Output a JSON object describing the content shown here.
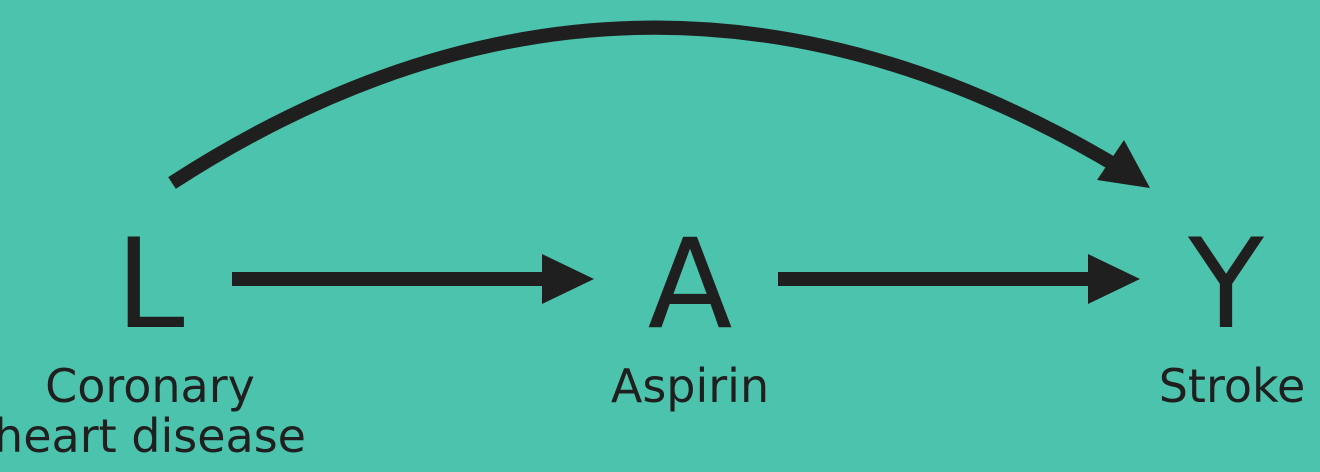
{
  "diagram": {
    "background_color": "#4cc4ad",
    "ink_color": "#1f1f1f",
    "nodes": [
      {
        "id": "L",
        "letter": "L",
        "label_lines": [
          "Coronary",
          "heart disease"
        ]
      },
      {
        "id": "A",
        "letter": "A",
        "label_lines": [
          "Aspirin"
        ]
      },
      {
        "id": "Y",
        "letter": "Y",
        "label_lines": [
          "Stroke"
        ]
      }
    ],
    "edges": [
      {
        "from": "L",
        "to": "A"
      },
      {
        "from": "A",
        "to": "Y"
      },
      {
        "from": "L",
        "to": "Y"
      }
    ]
  }
}
